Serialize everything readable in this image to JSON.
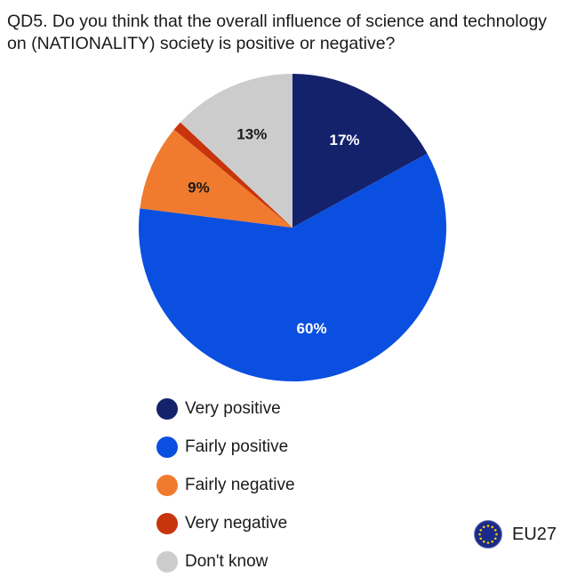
{
  "title_lines": [
    "QD5. Do you think that the overall influence of science and technology",
    "on (NATIONALITY) society is positive or negative?"
  ],
  "region": {
    "label": "EU27",
    "icon": "eu-flag-icon",
    "flag_color": "#1b2a8a",
    "star_color": "#f5d000"
  },
  "chart_data": {
    "type": "pie",
    "title": "QD5. Do you think that the overall influence of science and technology on (NATIONALITY) society is positive or negative?",
    "unit": "%",
    "start": "12 o'clock, clockwise",
    "slices": [
      {
        "name": "Very positive",
        "value": 17,
        "label": "17%",
        "color": "#14216b",
        "label_color": "#ffffff"
      },
      {
        "name": "Fairly positive",
        "value": 60,
        "label": "60%",
        "color": "#0a4fe0",
        "label_color": "#ffffff"
      },
      {
        "name": "Fairly negative",
        "value": 9,
        "label": "9%",
        "color": "#f07b2f",
        "label_color": "#1a1a1a"
      },
      {
        "name": "Very negative",
        "value": 1,
        "label": "",
        "color": "#c8340c",
        "label_color": "#1a1a1a"
      },
      {
        "name": "Don't know",
        "value": 13,
        "label": "13%",
        "color": "#cccccc",
        "label_color": "#1a1a1a"
      }
    ],
    "legend": [
      "Very positive",
      "Fairly positive",
      "Fairly negative",
      "Very negative",
      "Don't know"
    ],
    "legend_placement": "bottom-left"
  }
}
